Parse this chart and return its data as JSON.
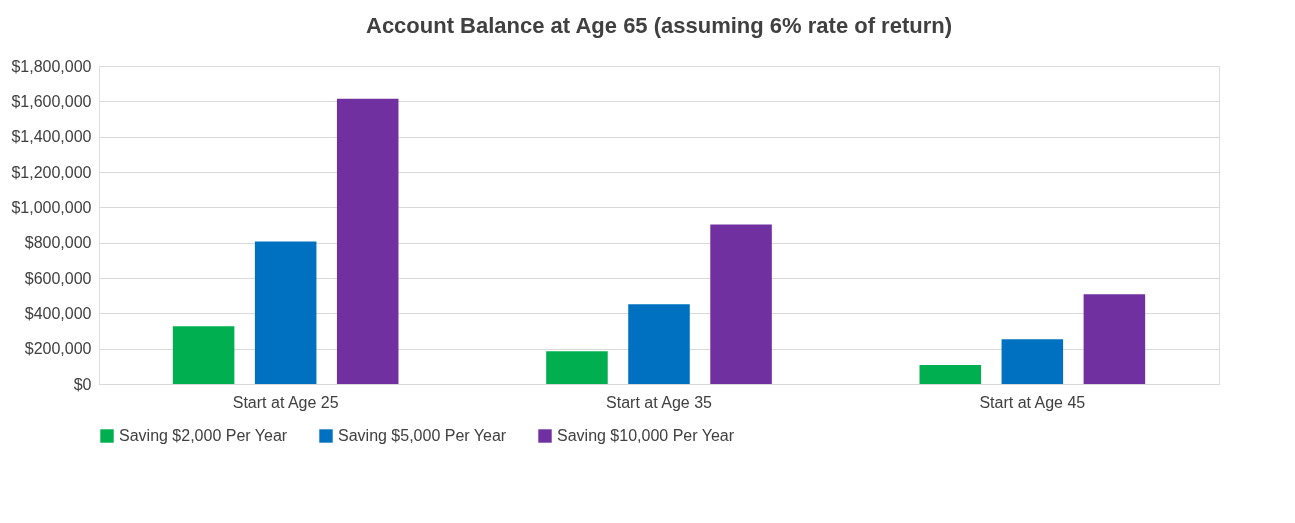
{
  "chart_data": {
    "type": "bar",
    "title": "Account Balance at Age 65 (assuming 6% rate of return)",
    "categories": [
      "Start at Age 25",
      "Start at Age 35",
      "Start at Age 45"
    ],
    "series": [
      {
        "name": "Saving $2,000 Per Year",
        "color": "#00b050",
        "values": [
          327000,
          186000,
          107000
        ]
      },
      {
        "name": "Saving $5,000 Per Year",
        "color": "#0070c0",
        "values": [
          807000,
          451000,
          254000
        ]
      },
      {
        "name": "Saving $10,000 Per Year",
        "color": "#7030a0",
        "values": [
          1614000,
          903000,
          508000
        ]
      }
    ],
    "ylim": [
      0,
      1800000
    ],
    "yticks": [
      {
        "value": 0,
        "label": "$0"
      },
      {
        "value": 200000,
        "label": "$200,000"
      },
      {
        "value": 400000,
        "label": "$400,000"
      },
      {
        "value": 600000,
        "label": "$600,000"
      },
      {
        "value": 800000,
        "label": "$800,000"
      },
      {
        "value": 1000000,
        "label": "$1,000,000"
      },
      {
        "value": 1200000,
        "label": "$1,200,000"
      },
      {
        "value": 1400000,
        "label": "$1,400,000"
      },
      {
        "value": 1600000,
        "label": "$1,600,000"
      },
      {
        "value": 1800000,
        "label": "$1,800,000"
      }
    ],
    "grid": "y",
    "legend": "bottom"
  }
}
